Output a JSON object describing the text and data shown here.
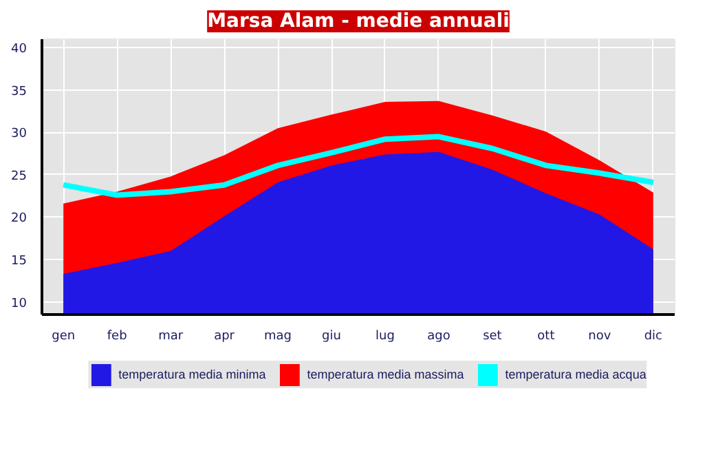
{
  "chart_data": {
    "type": "area",
    "title": "Marsa Alam - medie annuali",
    "categories": [
      "gen",
      "feb",
      "mar",
      "apr",
      "mag",
      "giu",
      "lug",
      "ago",
      "set",
      "ott",
      "nov",
      "dic"
    ],
    "series": [
      {
        "name": "temperatura media massima",
        "color": "#ff0000",
        "values": [
          21.6,
          23,
          24.8,
          27.3,
          30.5,
          32.1,
          33.6,
          33.7,
          32,
          30.1,
          26.7,
          22.9
        ]
      },
      {
        "name": "temperatura media minima",
        "color": "#2218e6",
        "values": [
          13.3,
          14.6,
          16,
          20.1,
          24.1,
          26.1,
          27.4,
          27.7,
          25.6,
          22.8,
          20.3,
          16.2
        ]
      },
      {
        "name": "temperatura media acqua",
        "color": "#00ffff",
        "type": "line",
        "values": [
          23.8,
          22.6,
          23,
          23.8,
          26.1,
          27.6,
          29.2,
          29.5,
          28.1,
          26.1,
          25.2,
          24.1
        ]
      }
    ],
    "ylim": [
      8.5,
      41
    ],
    "yticks": [
      10,
      15,
      20,
      25,
      30,
      35,
      40
    ],
    "grid": true,
    "legend": "bottom"
  }
}
